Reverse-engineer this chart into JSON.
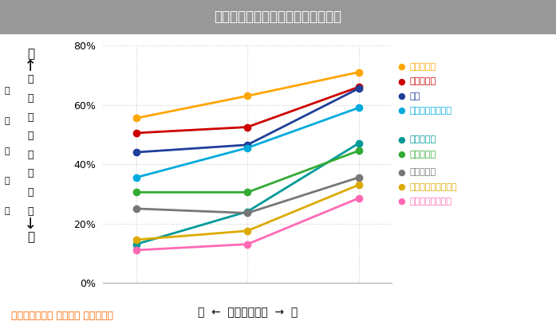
{
  "title": "住宅の高断熱化による健康改善効果",
  "source": "出典：近畿大学 建築学部 岩前研究室",
  "xlabel": "低  ←  住宅の断熱性  →  高",
  "x_ticks": [
    1,
    2,
    3
  ],
  "ylim": [
    0,
    0.8
  ],
  "yticks": [
    0.0,
    0.2,
    0.4,
    0.6,
    0.8
  ],
  "series": [
    {
      "label": "気管支喘息",
      "color": "#FFA500",
      "values": [
        0.555,
        0.63,
        0.71
      ]
    },
    {
      "label": "のどの痛み",
      "color": "#CC0000",
      "values": [
        0.505,
        0.525,
        0.66
      ]
    },
    {
      "label": "せき",
      "color": "#1F3F99",
      "values": [
        0.44,
        0.465,
        0.655
      ]
    },
    {
      "label": "アトピー性皮膚炎",
      "color": "#00AADD",
      "values": [
        0.355,
        0.455,
        0.59
      ]
    },
    {
      "label": "手足の冷え",
      "color": "#009999",
      "values": [
        0.13,
        0.24,
        0.47
      ]
    },
    {
      "label": "肌のかゆみ",
      "color": "#33AA33",
      "values": [
        0.305,
        0.305,
        0.445
      ]
    },
    {
      "label": "目のかゆみ",
      "color": "#777777",
      "values": [
        0.25,
        0.235,
        0.355
      ]
    },
    {
      "label": "アレルギー性結膜炎",
      "color": "#DDAA00",
      "values": [
        0.145,
        0.175,
        0.33
      ]
    },
    {
      "label": "アレルギー性鼻炎",
      "color": "#FF69B4",
      "values": [
        0.11,
        0.13,
        0.285
      ]
    }
  ],
  "bg_color": "#FFFFFF",
  "title_bg_color": "#999999",
  "grid_color": "#CCCCCC",
  "marker_size": 6,
  "line_width": 2.0
}
